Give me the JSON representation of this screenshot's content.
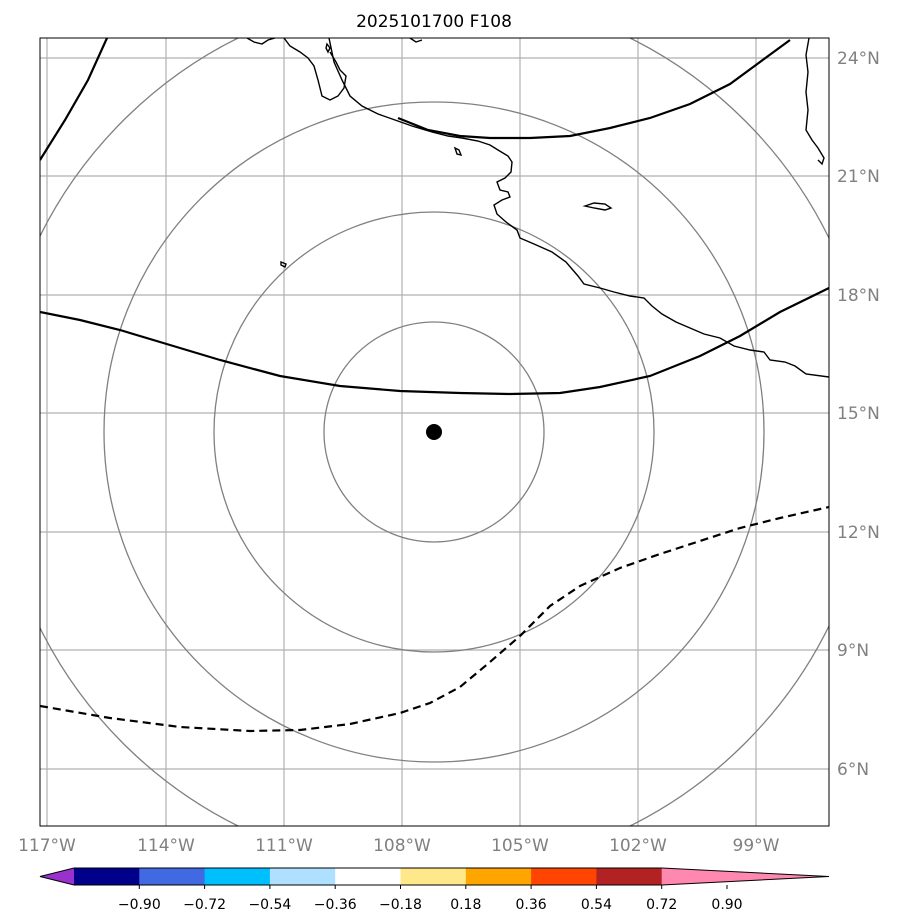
{
  "title": "2025101700 F108",
  "lon_ticks": [
    "117°W",
    "114°W",
    "111°W",
    "108°W",
    "105°W",
    "102°W",
    "99°W"
  ],
  "lat_ticks": [
    "24°N",
    "21°N",
    "18°N",
    "15°N",
    "12°N",
    "9°N",
    "6°N"
  ],
  "colorbar": {
    "tick_labels": [
      "−0.90",
      "−0.72",
      "−0.54",
      "−0.36",
      "−0.18",
      "0.18",
      "0.36",
      "0.54",
      "0.72",
      "0.90"
    ],
    "colors": [
      "#9932cc",
      "#00008b",
      "#4169e1",
      "#00bfff",
      "#b0e0ff",
      "#ffffff",
      "#ffe88a",
      "#ffa500",
      "#ff4500",
      "#b22222",
      "#ff88b0"
    ]
  },
  "map": {
    "center_marker": {
      "lon": -107.8,
      "lat": 14.5,
      "label": ""
    },
    "range_rings": 4,
    "frame_color": "#000000",
    "grid_color": "#b0b0b0",
    "ring_color": "#808080"
  }
}
